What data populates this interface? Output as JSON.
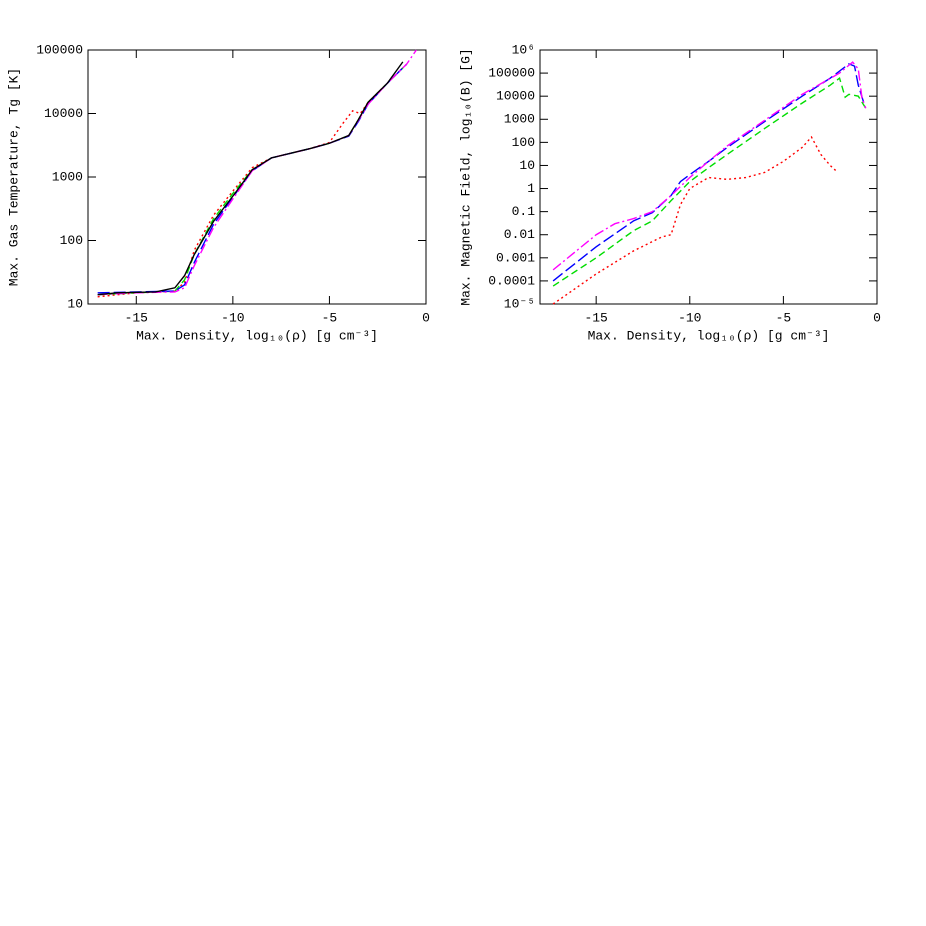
{
  "chart_data": [
    {
      "type": "line",
      "xlabel": "Max. Density, log₁₀(ρ) [g cm⁻³]",
      "ylabel": "Max. Gas Temperature, Tg [K]",
      "xlim": [
        -17.5,
        0
      ],
      "xticks": [
        -15,
        -10,
        -5,
        0
      ],
      "ylim": [
        10,
        100000
      ],
      "yticks": [
        10,
        100,
        1000,
        10000,
        100000
      ],
      "ylog": true,
      "series": [
        {
          "color": "#ff0000",
          "dash": "dotted",
          "x": [
            -17,
            -15,
            -13,
            -12.5,
            -12,
            -11,
            -10,
            -9,
            -8,
            -6,
            -5,
            -4.3,
            -3.8,
            -3.4,
            -3,
            -2,
            -1
          ],
          "values": [
            13,
            15,
            16,
            22,
            70,
            250,
            600,
            1400,
            2000,
            2800,
            3500,
            7000,
            11000,
            10000,
            15000,
            30000,
            60000
          ]
        },
        {
          "color": "#00dd00",
          "dash": "dashed",
          "x": [
            -17,
            -15,
            -13,
            -12.5,
            -12,
            -11,
            -10,
            -9,
            -8,
            -6,
            -5,
            -4,
            -3.5,
            -3,
            -2,
            -1
          ],
          "values": [
            14,
            15,
            16,
            24,
            60,
            220,
            550,
            1300,
            2000,
            2800,
            3400,
            4500,
            8000,
            15000,
            30000,
            60000
          ]
        },
        {
          "color": "#0000ff",
          "dash": "longdash",
          "x": [
            -17,
            -15,
            -13,
            -12.5,
            -12,
            -11,
            -10,
            -9,
            -8,
            -6,
            -5,
            -4,
            -3.5,
            -3,
            -2,
            -1
          ],
          "values": [
            15,
            15.5,
            16,
            20,
            45,
            180,
            480,
            1250,
            2000,
            2800,
            3400,
            4400,
            7500,
            14000,
            30000,
            60000
          ]
        },
        {
          "color": "#ff00ff",
          "dash": "dashdot",
          "x": [
            -17,
            -15,
            -13,
            -12.5,
            -12,
            -11,
            -10,
            -9,
            -8,
            -6,
            -5,
            -4,
            -3.5,
            -3,
            -2,
            -1,
            -0.5
          ],
          "values": [
            14,
            15,
            15.5,
            18,
            40,
            160,
            450,
            1250,
            2000,
            2800,
            3400,
            4500,
            7800,
            14000,
            30000,
            60000,
            100000
          ]
        },
        {
          "color": "#000000",
          "dash": "solid",
          "x": [
            -17,
            -16,
            -14,
            -13,
            -12.5,
            -12,
            -11,
            -10,
            -9.5,
            -9,
            -8,
            -6,
            -5,
            -4,
            -3.5,
            -3,
            -2,
            -1.2
          ],
          "values": [
            14,
            15,
            15.5,
            18,
            28,
            60,
            200,
            500,
            800,
            1300,
            2000,
            2800,
            3400,
            4500,
            8000,
            15000,
            30000,
            65000
          ]
        }
      ]
    },
    {
      "type": "line",
      "xlabel": "Max. Density, log₁₀(ρ) [g cm⁻³]",
      "ylabel": "Max. Magnetic Field, log₁₀(B) [G]",
      "xlim": [
        -18,
        0
      ],
      "xticks": [
        -15,
        -10,
        -5,
        0
      ],
      "ylim": [
        1e-05,
        1000000
      ],
      "yticks": [
        {
          "value": 1e-05,
          "label": "10⁻⁵"
        },
        0.0001,
        0.001,
        0.01,
        0.1,
        1,
        10,
        100,
        1000,
        10000,
        100000,
        {
          "value": 1000000,
          "label": "10⁶"
        }
      ],
      "ylog": true,
      "series": [
        {
          "color": "#ff0000",
          "dash": "dotted",
          "x": [
            -17.3,
            -15,
            -13,
            -11.5,
            -11,
            -10.5,
            -10,
            -9,
            -8,
            -7,
            -6,
            -5,
            -4,
            -3.5,
            -3,
            -2.5,
            -2.2
          ],
          "values": [
            1e-05,
            0.0002,
            0.002,
            0.008,
            0.01,
            0.2,
            1,
            3,
            2.5,
            3,
            5,
            15,
            60,
            170,
            30,
            10,
            6
          ]
        },
        {
          "color": "#00dd00",
          "dash": "dashed",
          "x": [
            -17.3,
            -15,
            -13,
            -12,
            -11,
            -10,
            -9,
            -8,
            -6,
            -4,
            -2.5,
            -2,
            -1.7,
            -1.5,
            -1,
            -0.6
          ],
          "values": [
            6e-05,
            0.001,
            0.015,
            0.04,
            0.3,
            2,
            8,
            30,
            400,
            5000,
            30000,
            60000,
            9000,
            12000,
            10000,
            3000
          ]
        },
        {
          "color": "#0000ff",
          "dash": "longdash",
          "x": [
            -17.3,
            -15,
            -13,
            -12,
            -11,
            -10.5,
            -10,
            -9,
            -8,
            -6,
            -4,
            -2.5,
            -1.5,
            -1.2,
            -1,
            -0.7
          ],
          "values": [
            0.0001,
            0.003,
            0.04,
            0.09,
            0.5,
            2,
            4,
            15,
            60,
            800,
            10000,
            60000,
            250000,
            200000,
            30000,
            5000
          ]
        },
        {
          "color": "#ff00ff",
          "dash": "dashdot",
          "x": [
            -17.3,
            -15,
            -14,
            -13,
            -12,
            -11,
            -10,
            -9,
            -8,
            -6,
            -4,
            -2,
            -1.3,
            -1,
            -0.8,
            -0.6
          ],
          "values": [
            0.0003,
            0.01,
            0.03,
            0.05,
            0.1,
            0.5,
            3,
            15,
            70,
            900,
            12000,
            100000,
            300000,
            150000,
            8000,
            3000
          ]
        }
      ]
    }
  ]
}
